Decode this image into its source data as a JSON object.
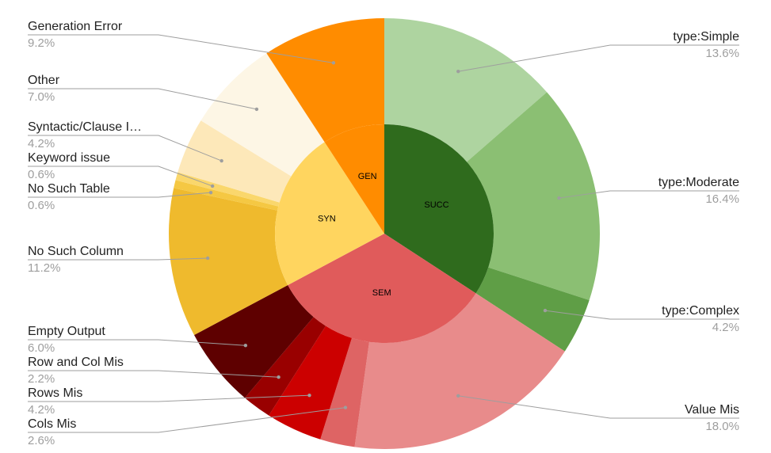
{
  "chart_data": {
    "type": "sunburst",
    "inner": {
      "categories": [
        "SUCC",
        "SEM",
        "SYN",
        "GEN"
      ],
      "values": [
        34.2,
        33.0,
        23.6,
        9.2
      ],
      "colors": [
        "#2f6b1d",
        "#e05b5b",
        "#ffd55f",
        "#ff8c00"
      ]
    },
    "outer": {
      "categories": [
        "type:Simple",
        "type:Moderate",
        "type:Complex",
        "Value Mis",
        "Cols Mis",
        "Rows Mis",
        "Row and Col Mis",
        "Empty Output",
        "No Such Column",
        "No Such Table",
        "Keyword issue",
        "Syntactic/Clause I…",
        "Other",
        "Generation Error"
      ],
      "values": [
        13.6,
        16.4,
        4.2,
        18.0,
        2.6,
        4.2,
        2.2,
        6.0,
        11.2,
        0.6,
        0.6,
        4.2,
        7.0,
        9.2
      ],
      "value_labels": [
        "13.6%",
        "16.4%",
        "4.2%",
        "18.0%",
        "2.6%",
        "4.2%",
        "2.2%",
        "6.0%",
        "11.2%",
        "0.6%",
        "0.6%",
        "4.2%",
        "7.0%",
        "9.2%"
      ],
      "colors": [
        "#aed4a0",
        "#8bbf73",
        "#5f9e46",
        "#e88b8b",
        "#de6464",
        "#cc0000",
        "#990000",
        "#5e0000",
        "#efba2d",
        "#f5c843",
        "#fad76c",
        "#fde8b9",
        "#fdf6e5",
        "#ff8c00"
      ]
    }
  }
}
